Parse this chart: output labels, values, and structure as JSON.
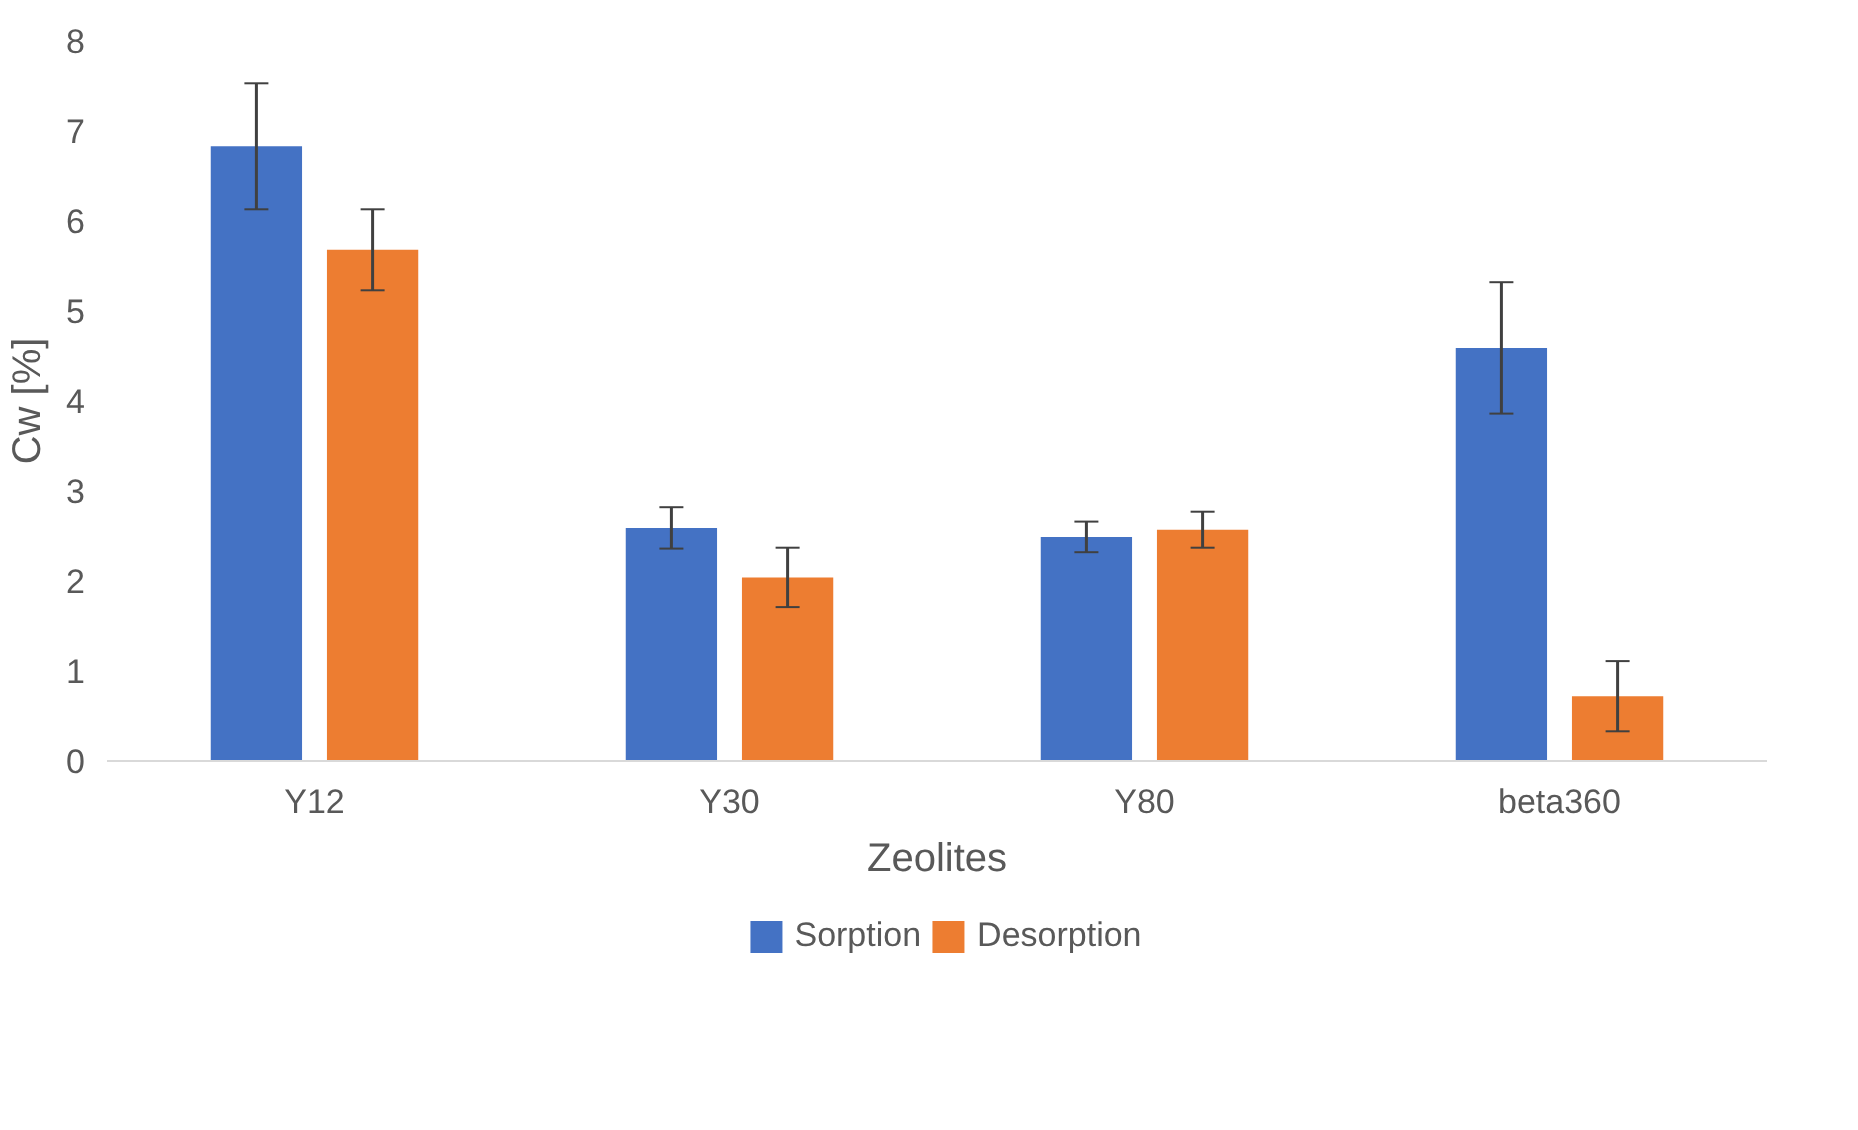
{
  "chart_data": {
    "type": "bar",
    "xlabel": "Zeolites",
    "ylabel": "Cw [%]",
    "categories": [
      "Y12",
      "Y30",
      "Y80",
      "beta360"
    ],
    "series": [
      {
        "name": "Sorption",
        "color": "#4472c4",
        "values": [
          6.83,
          2.59,
          2.49,
          4.59
        ],
        "errors": [
          0.7,
          0.23,
          0.17,
          0.73
        ]
      },
      {
        "name": "Desorption",
        "color": "#ed7d31",
        "values": [
          5.68,
          2.04,
          2.57,
          0.72
        ],
        "errors": [
          0.45,
          0.33,
          0.2,
          0.39
        ]
      }
    ],
    "ylim": [
      0,
      8
    ],
    "yticks": [
      0,
      1,
      2,
      3,
      4,
      5,
      6,
      7,
      8
    ],
    "grid": false,
    "legend": "bottom"
  }
}
